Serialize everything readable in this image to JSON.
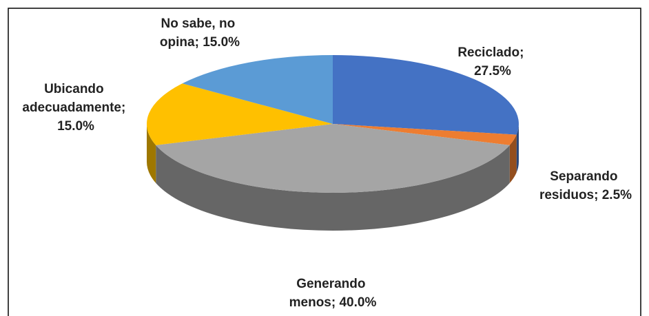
{
  "chart_data": {
    "type": "pie3d",
    "values": [
      27.5,
      2.5,
      40.0,
      15.0,
      15.0
    ],
    "value_labels": [
      "Reciclado; 27.5%",
      "Separando residuos; 2.5%",
      "Generando menos; 40.0%",
      "Ubicando adecuadamente; 15.0%",
      "No sabe, no opina; 15.0%"
    ],
    "colors": [
      "#4472c4",
      "#ed7d31",
      "#a5a5a5",
      "#ffc000",
      "#5b9bd5"
    ]
  }
}
